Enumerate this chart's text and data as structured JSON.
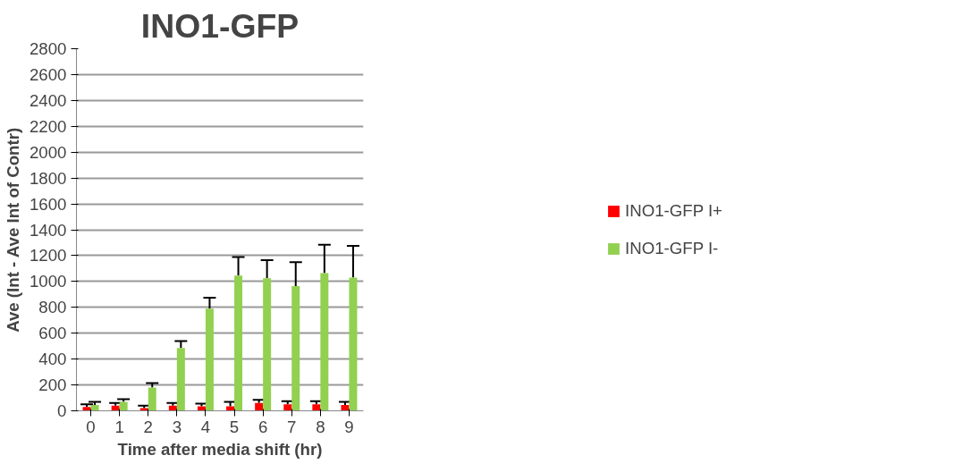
{
  "chart_data": {
    "type": "bar",
    "title": "INO1-GFP",
    "xlabel": "Time after media shift (hr)",
    "ylabel": "Ave (Int - Ave Int of Contr)",
    "categories": [
      "0",
      "1",
      "2",
      "3",
      "4",
      "5",
      "6",
      "7",
      "8",
      "9"
    ],
    "series": [
      {
        "name": "INO1-GFP I+",
        "color": "#ff0000",
        "values": [
          30,
          40,
          20,
          40,
          35,
          35,
          60,
          50,
          50,
          45
        ],
        "errors": [
          [
            30,
            50
          ],
          [
            40,
            60
          ],
          [
            20,
            40
          ],
          [
            40,
            60
          ],
          [
            35,
            55
          ],
          [
            35,
            70
          ],
          [
            60,
            85
          ],
          [
            50,
            75
          ],
          [
            50,
            75
          ],
          [
            45,
            70
          ]
        ]
      },
      {
        "name": "INO1-GFP I-",
        "color": "#92d050",
        "values": [
          45,
          70,
          180,
          485,
          790,
          1045,
          1025,
          965,
          1065,
          1030
        ],
        "errors": [
          [
            45,
            70
          ],
          [
            70,
            90
          ],
          [
            180,
            215
          ],
          [
            485,
            540
          ],
          [
            790,
            875
          ],
          [
            1045,
            1190
          ],
          [
            1025,
            1165
          ],
          [
            965,
            1150
          ],
          [
            1065,
            1285
          ],
          [
            1030,
            1275
          ]
        ]
      }
    ],
    "ylim": [
      0,
      2800
    ],
    "yticks": [
      0,
      200,
      400,
      600,
      800,
      1000,
      1200,
      1400,
      1600,
      1800,
      2000,
      2200,
      2400,
      2600,
      2800
    ],
    "grid": "y",
    "legend": "right"
  }
}
